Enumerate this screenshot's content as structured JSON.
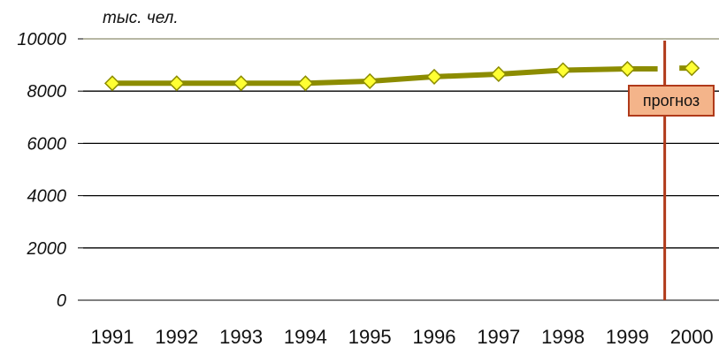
{
  "chart_data": {
    "type": "line",
    "unit_label": "тыс. чел.",
    "y_ticks": [
      "0",
      "2000",
      "4000",
      "6000",
      "8000",
      "10000"
    ],
    "ylim": [
      0,
      10000
    ],
    "categories": [
      "1991",
      "1992",
      "1993",
      "1994",
      "1995",
      "1996",
      "1997",
      "1998",
      "1999",
      "2000"
    ],
    "series": [
      {
        "values": [
          8300,
          8300,
          8300,
          8300,
          8380,
          8550,
          8650,
          8800,
          8850,
          8880
        ]
      }
    ],
    "forecast_from": "2000",
    "annotation": "прогноз",
    "grid": true,
    "colors": {
      "line": "#8c8c00",
      "marker_fill": "#ffff33",
      "marker_stroke": "#8c8c00",
      "divider": "#b03a1a",
      "annotation_fill": "#f4b48a",
      "annotation_stroke": "#b03a1a",
      "grid": "#000000",
      "top_grid": "#8c8c6c"
    }
  }
}
